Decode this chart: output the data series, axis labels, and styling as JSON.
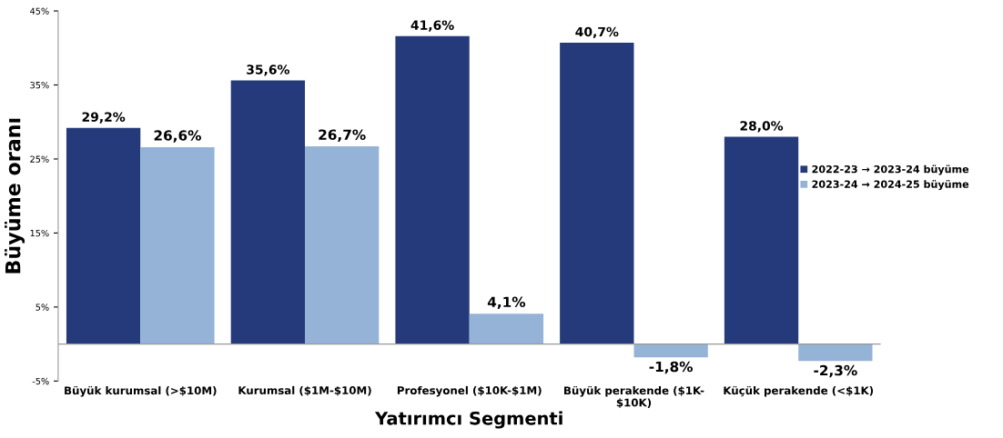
{
  "chart_data": {
    "type": "bar",
    "xlabel": "Yatırımcı Segmenti",
    "ylabel": "Büyüme oranı",
    "categories": [
      "Büyük kurumsal (>$10M)",
      "Kurumsal ($1M-$10M)",
      "Profesyonel ($10K-$1M)",
      "Büyük perakende ($1K-$10K)",
      "Küçük perakende (<$1K)"
    ],
    "series": [
      {
        "name": "2022-23 → 2023-24 büyüme",
        "color": "#253a7a",
        "values": [
          29.2,
          35.6,
          41.6,
          40.7,
          28.0
        ],
        "value_labels": [
          "29,2%",
          "35,6%",
          "41,6%",
          "40,7%",
          "28,0%"
        ]
      },
      {
        "name": "2023-24 → 2024-25 büyüme",
        "color": "#95b3d7",
        "values": [
          26.6,
          26.7,
          4.1,
          -1.8,
          -2.3
        ],
        "value_labels": [
          "26,6%",
          "26,7%",
          "4,1%",
          "-1,8%",
          "-2,3%"
        ]
      }
    ],
    "ylim": [
      -5,
      45
    ],
    "yticks": [
      {
        "value": -5,
        "label": "-5%"
      },
      {
        "value": 5,
        "label": "5%"
      },
      {
        "value": 15,
        "label": "15%"
      },
      {
        "value": 25,
        "label": "25%"
      },
      {
        "value": 35,
        "label": "35%"
      },
      {
        "value": 45,
        "label": "45%"
      }
    ],
    "grid": false,
    "legend": "right"
  }
}
